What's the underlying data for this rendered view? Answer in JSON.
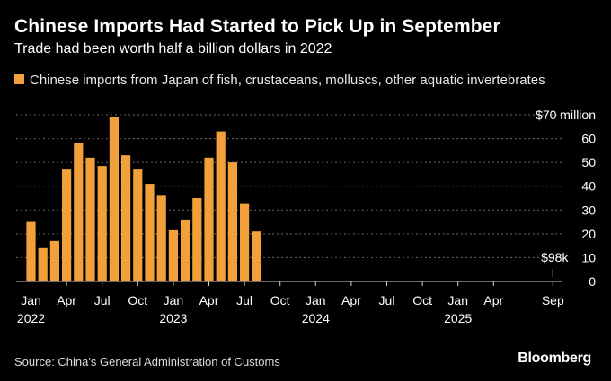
{
  "header": {
    "title": "Chinese Imports Had Started to Pick Up in September",
    "subtitle": "Trade had been worth half a billion dollars in 2022"
  },
  "legend": {
    "label": "Chinese imports from Japan of fish, crustaceans, molluscs, other aquatic invertebrates"
  },
  "footer": {
    "source": "Source: China's General Administration of Customs",
    "brand": "Bloomberg"
  },
  "chart_data": {
    "type": "bar",
    "categories": [
      "2022-01",
      "2022-02",
      "2022-03",
      "2022-04",
      "2022-05",
      "2022-06",
      "2022-07",
      "2022-08",
      "2022-09",
      "2022-10",
      "2022-11",
      "2022-12",
      "2023-01",
      "2023-02",
      "2023-03",
      "2023-04",
      "2023-05",
      "2023-06",
      "2023-07",
      "2023-08",
      "2023-09",
      "2023-10",
      "2023-11",
      "2023-12",
      "2024-01",
      "2024-02",
      "2024-03",
      "2024-04",
      "2024-05",
      "2024-06",
      "2024-07",
      "2024-08",
      "2024-09",
      "2024-10",
      "2024-11",
      "2024-12",
      "2025-01",
      "2025-02",
      "2025-03",
      "2025-04",
      "2025-05",
      "2025-06",
      "2025-07",
      "2025-08",
      "2025-09"
    ],
    "series": [
      {
        "name": "Chinese imports from Japan of fish, crustaceans, molluscs, other aquatic invertebrates",
        "values": [
          25,
          14,
          17,
          47,
          58,
          52,
          48.5,
          69,
          53,
          47,
          41,
          36,
          21.5,
          26,
          35,
          52,
          63,
          50,
          32.5,
          21,
          0.3,
          0.1,
          0,
          0,
          0,
          0,
          0,
          0,
          0,
          0,
          0,
          0,
          0,
          0,
          0,
          0,
          0,
          0,
          0,
          0,
          0,
          0,
          0,
          0,
          0.098
        ]
      }
    ],
    "ylim": [
      0,
      70
    ],
    "yticks": [
      0,
      10,
      20,
      30,
      40,
      50,
      60,
      70
    ],
    "ytick_labels": [
      "0",
      "10",
      "20",
      "30",
      "40",
      "50",
      "60",
      "$70 million"
    ],
    "xtick_labels": [
      {
        "index": 0,
        "month": "Jan",
        "year": "2022"
      },
      {
        "index": 3,
        "month": "Apr",
        "year": ""
      },
      {
        "index": 6,
        "month": "Jul",
        "year": ""
      },
      {
        "index": 9,
        "month": "Oct",
        "year": ""
      },
      {
        "index": 12,
        "month": "Jan",
        "year": "2023"
      },
      {
        "index": 15,
        "month": "Apr",
        "year": ""
      },
      {
        "index": 18,
        "month": "Jul",
        "year": ""
      },
      {
        "index": 21,
        "month": "Oct",
        "year": ""
      },
      {
        "index": 24,
        "month": "Jan",
        "year": "2024"
      },
      {
        "index": 27,
        "month": "Apr",
        "year": ""
      },
      {
        "index": 30,
        "month": "Jul",
        "year": ""
      },
      {
        "index": 33,
        "month": "Oct",
        "year": ""
      },
      {
        "index": 36,
        "month": "Jan",
        "year": "2025"
      },
      {
        "index": 39,
        "month": "Apr",
        "year": ""
      },
      {
        "index": 44,
        "month": "Sep",
        "year": ""
      }
    ],
    "annotations": [
      {
        "text": "$98k",
        "index": 44,
        "value": 0.098
      }
    ],
    "grid": true,
    "colors": {
      "bar": "#f2a03a",
      "grid": "#6a6a6a",
      "axis": "#cfcfcf",
      "background": "#000000"
    }
  }
}
